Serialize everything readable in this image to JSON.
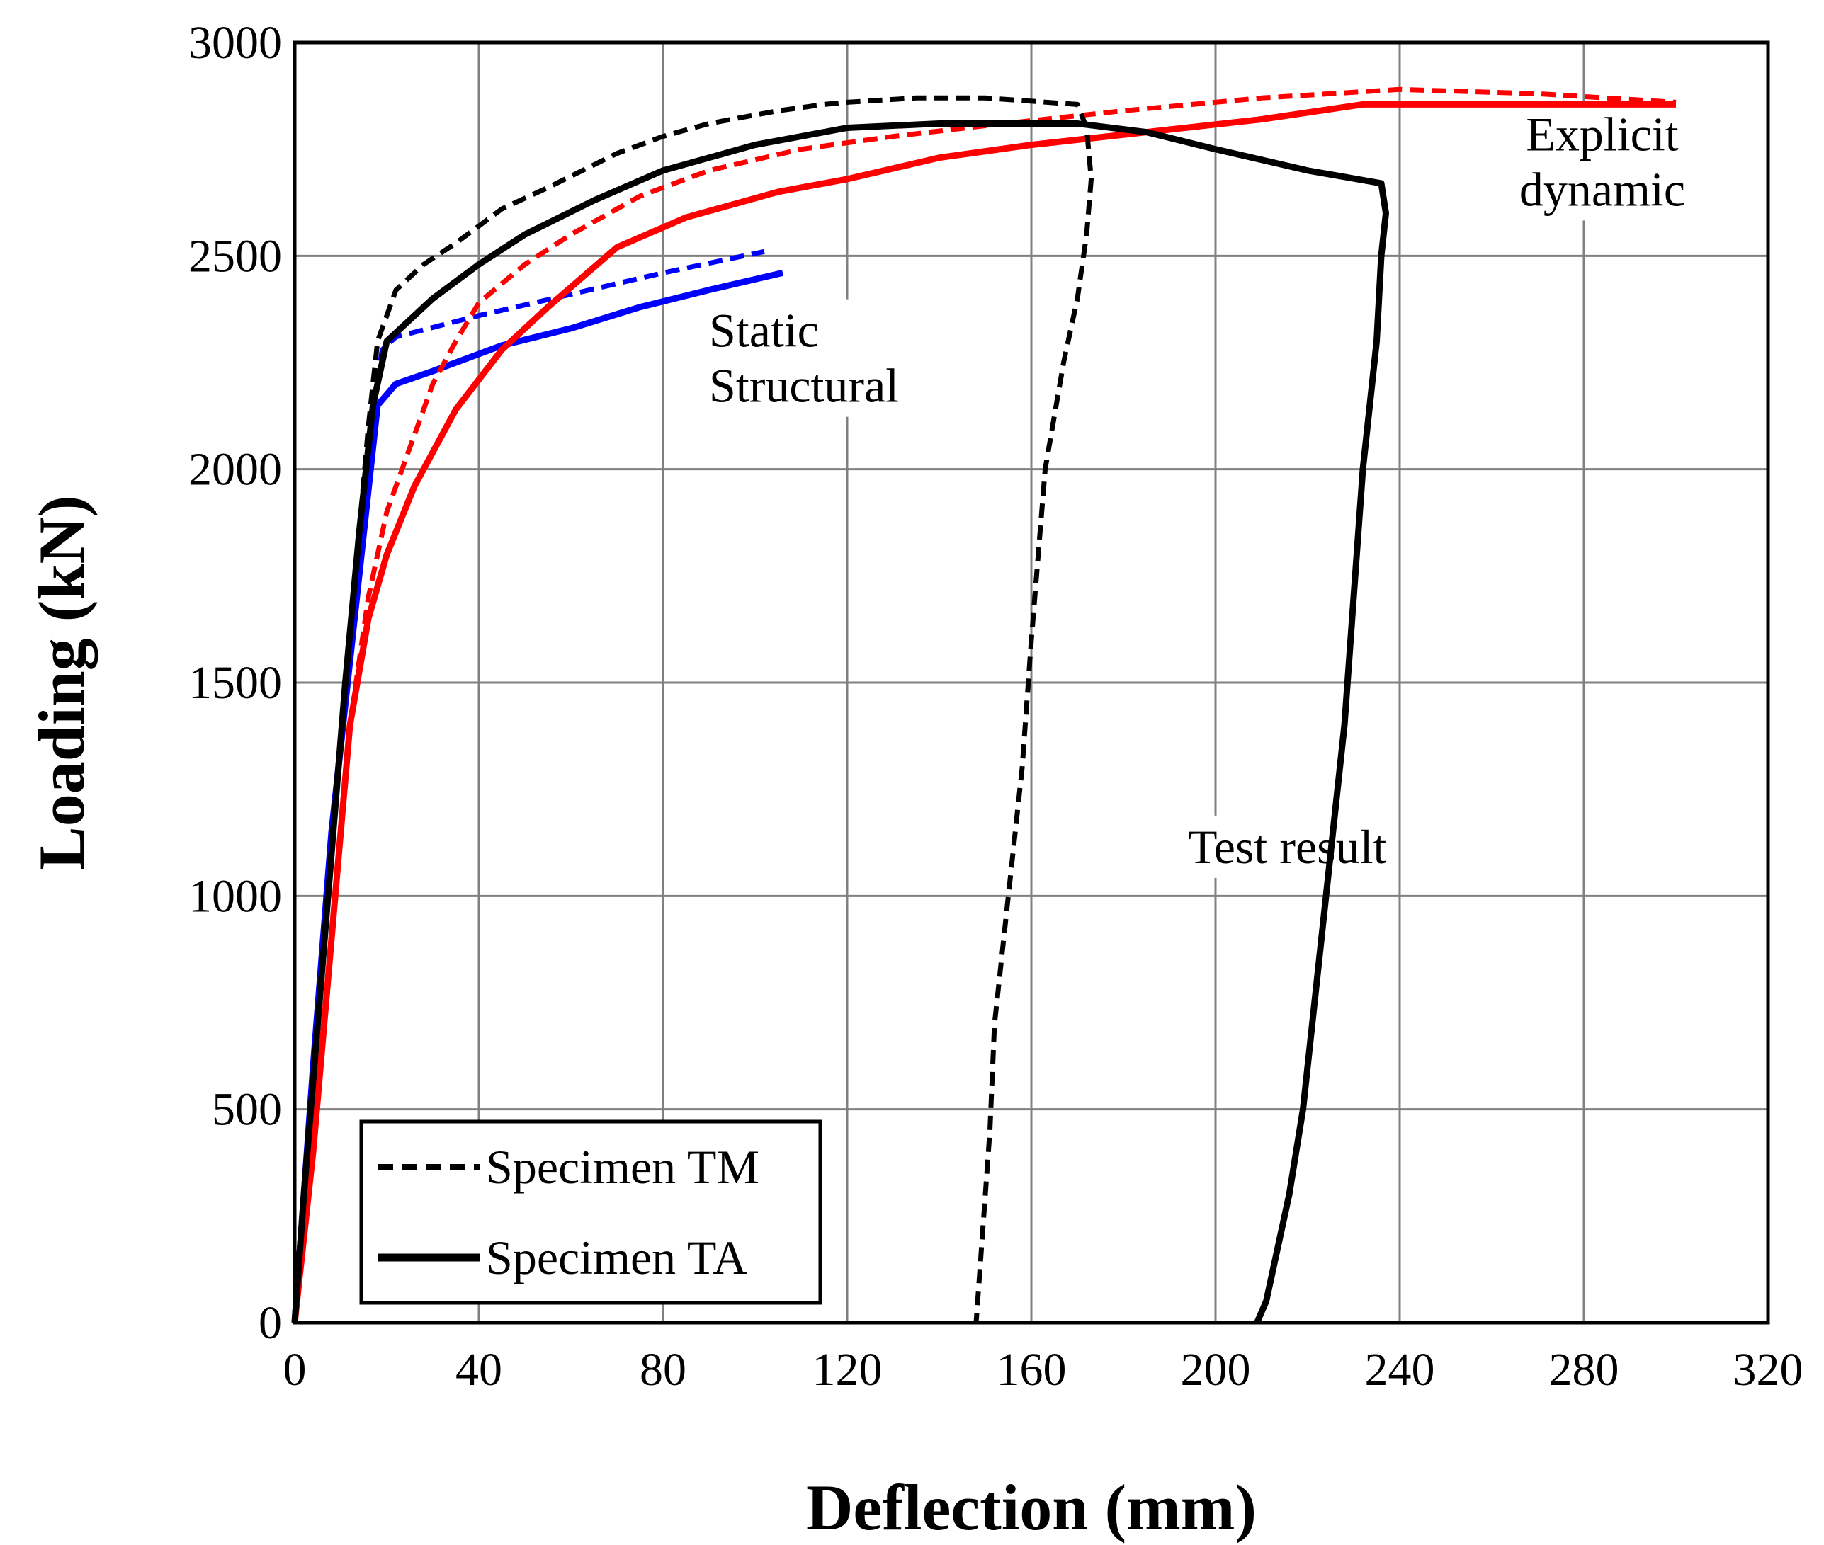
{
  "chart_data": {
    "type": "line",
    "title": "",
    "xlabel": "Deflection (mm)",
    "ylabel": "Loading (kN)",
    "xlim": [
      0,
      320
    ],
    "ylim": [
      0,
      3000
    ],
    "x_ticks": [
      "0",
      "40",
      "80",
      "120",
      "160",
      "200",
      "240",
      "280",
      "320"
    ],
    "y_ticks": [
      "0",
      "500",
      "1000",
      "1500",
      "2000",
      "2500",
      "3000"
    ],
    "grid": true,
    "legend": {
      "position": "bottom-left",
      "entries": [
        {
          "label": "Specimen TM",
          "style": "dashed"
        },
        {
          "label": "Specimen TA",
          "style": "solid"
        }
      ]
    },
    "annotations": [
      {
        "lines": [
          "Static",
          "Structural"
        ],
        "x": 90,
        "y_top": 2390
      },
      {
        "lines": [
          "Explicit",
          "dynamic"
        ],
        "x": 284,
        "y_top": 2850
      },
      {
        "lines": [
          "Test  result"
        ],
        "x": 194,
        "y_top": 1180
      }
    ],
    "colors": {
      "test": "#000000",
      "explicit": "#ff0000",
      "static": "#0000ff"
    },
    "series": [
      {
        "name": "Test result - Specimen TM",
        "group": "test",
        "specimen": "TM",
        "dash": "dashed",
        "points": [
          [
            0,
            0
          ],
          [
            2,
            300
          ],
          [
            5,
            700
          ],
          [
            8,
            1100
          ],
          [
            11,
            1500
          ],
          [
            14,
            1850
          ],
          [
            16,
            2100
          ],
          [
            18,
            2300
          ],
          [
            22,
            2420
          ],
          [
            28,
            2480
          ],
          [
            35,
            2530
          ],
          [
            45,
            2610
          ],
          [
            55,
            2660
          ],
          [
            70,
            2740
          ],
          [
            80,
            2780
          ],
          [
            90,
            2810
          ],
          [
            105,
            2840
          ],
          [
            115,
            2855
          ],
          [
            120,
            2860
          ],
          [
            135,
            2870
          ],
          [
            150,
            2870
          ],
          [
            170,
            2855
          ],
          [
            172,
            2800
          ],
          [
            173,
            2680
          ],
          [
            172,
            2550
          ],
          [
            170,
            2400
          ],
          [
            167,
            2250
          ],
          [
            163,
            2000
          ],
          [
            160,
            1600
          ],
          [
            158,
            1300
          ],
          [
            155,
            1000
          ],
          [
            152,
            700
          ],
          [
            151,
            450
          ],
          [
            150,
            300
          ],
          [
            149,
            150
          ],
          [
            148,
            0
          ]
        ]
      },
      {
        "name": "Test result - Specimen TA",
        "group": "test",
        "specimen": "TA",
        "dash": "solid",
        "points": [
          [
            0,
            0
          ],
          [
            2,
            300
          ],
          [
            5,
            700
          ],
          [
            8,
            1100
          ],
          [
            11,
            1500
          ],
          [
            14,
            1850
          ],
          [
            17,
            2150
          ],
          [
            20,
            2300
          ],
          [
            30,
            2400
          ],
          [
            40,
            2480
          ],
          [
            50,
            2550
          ],
          [
            65,
            2630
          ],
          [
            80,
            2700
          ],
          [
            100,
            2760
          ],
          [
            120,
            2800
          ],
          [
            140,
            2810
          ],
          [
            170,
            2810
          ],
          [
            185,
            2790
          ],
          [
            200,
            2750
          ],
          [
            220,
            2700
          ],
          [
            236,
            2670
          ],
          [
            237,
            2600
          ],
          [
            236,
            2500
          ],
          [
            235,
            2300
          ],
          [
            232,
            2000
          ],
          [
            230,
            1700
          ],
          [
            228,
            1400
          ],
          [
            225,
            1100
          ],
          [
            222,
            800
          ],
          [
            219,
            500
          ],
          [
            216,
            300
          ],
          [
            213,
            150
          ],
          [
            211,
            50
          ],
          [
            209,
            0
          ]
        ]
      },
      {
        "name": "Explicit dynamic - Specimen TM",
        "group": "explicit",
        "specimen": "TM",
        "dash": "dashed",
        "points": [
          [
            0,
            0
          ],
          [
            4,
            400
          ],
          [
            8,
            900
          ],
          [
            12,
            1400
          ],
          [
            16,
            1700
          ],
          [
            20,
            1900
          ],
          [
            25,
            2050
          ],
          [
            30,
            2200
          ],
          [
            35,
            2300
          ],
          [
            40,
            2390
          ],
          [
            50,
            2480
          ],
          [
            60,
            2550
          ],
          [
            75,
            2640
          ],
          [
            90,
            2700
          ],
          [
            110,
            2750
          ],
          [
            130,
            2780
          ],
          [
            150,
            2805
          ],
          [
            180,
            2840
          ],
          [
            210,
            2870
          ],
          [
            240,
            2890
          ],
          [
            270,
            2880
          ],
          [
            300,
            2860
          ]
        ]
      },
      {
        "name": "Explicit dynamic - Specimen TA",
        "group": "explicit",
        "specimen": "TA",
        "dash": "solid",
        "points": [
          [
            0,
            0
          ],
          [
            4,
            400
          ],
          [
            8,
            900
          ],
          [
            12,
            1400
          ],
          [
            16,
            1650
          ],
          [
            20,
            1800
          ],
          [
            26,
            1960
          ],
          [
            35,
            2140
          ],
          [
            45,
            2280
          ],
          [
            55,
            2380
          ],
          [
            70,
            2520
          ],
          [
            85,
            2590
          ],
          [
            105,
            2650
          ],
          [
            120,
            2680
          ],
          [
            140,
            2730
          ],
          [
            160,
            2760
          ],
          [
            185,
            2790
          ],
          [
            210,
            2820
          ],
          [
            232,
            2855
          ],
          [
            260,
            2855
          ],
          [
            300,
            2855
          ]
        ]
      },
      {
        "name": "Static Structural - Specimen TM",
        "group": "static",
        "specimen": "TM",
        "dash": "dashed",
        "points": [
          [
            0,
            0
          ],
          [
            4,
            600
          ],
          [
            8,
            1150
          ],
          [
            12,
            1600
          ],
          [
            15,
            1900
          ],
          [
            17,
            2150
          ],
          [
            19,
            2280
          ],
          [
            22,
            2310
          ],
          [
            40,
            2360
          ],
          [
            60,
            2410
          ],
          [
            80,
            2460
          ],
          [
            102,
            2510
          ]
        ]
      },
      {
        "name": "Static Structural - Specimen TA",
        "group": "static",
        "specimen": "TA",
        "dash": "solid",
        "points": [
          [
            0,
            0
          ],
          [
            4,
            600
          ],
          [
            8,
            1150
          ],
          [
            12,
            1550
          ],
          [
            15,
            1850
          ],
          [
            17,
            2050
          ],
          [
            18,
            2150
          ],
          [
            22,
            2200
          ],
          [
            30,
            2230
          ],
          [
            45,
            2290
          ],
          [
            60,
            2330
          ],
          [
            75,
            2380
          ],
          [
            90,
            2420
          ],
          [
            106,
            2460
          ]
        ]
      }
    ]
  }
}
